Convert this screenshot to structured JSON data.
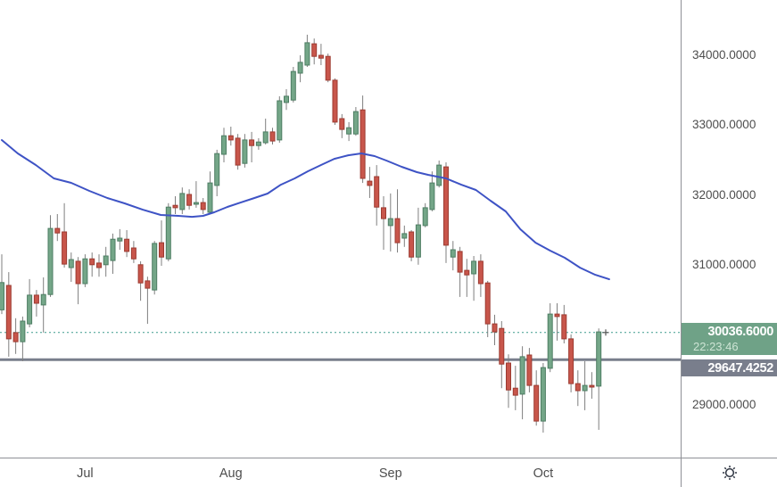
{
  "chart_data": {
    "type": "candlestick",
    "title": "",
    "grid": "off",
    "legend": "none",
    "ylim": [
      28248,
      34791
    ],
    "xlim_index": [
      -0.26,
      97.8
    ],
    "y_axis": {
      "tick_values": [
        34000,
        33000,
        32000,
        31000,
        29000
      ],
      "tick_labels": [
        "34000.0000",
        "33000.0000",
        "32000.0000",
        "31000.0000",
        "29000.0000"
      ]
    },
    "x_axis": {
      "months": [
        {
          "label": "Jul",
          "index": 12
        },
        {
          "label": "Aug",
          "index": 33
        },
        {
          "label": "Sep",
          "index": 56
        },
        {
          "label": "Oct",
          "index": 78
        }
      ]
    },
    "candles_format": "[open, high, low, close]",
    "candles": [
      [
        30360,
        31155,
        30300,
        30750
      ],
      [
        30710,
        30900,
        29690,
        29945
      ],
      [
        30035,
        30240,
        29730,
        29905
      ],
      [
        29905,
        30265,
        29625,
        30200
      ],
      [
        30160,
        30800,
        30110,
        30570
      ],
      [
        30570,
        30645,
        30265,
        30455
      ],
      [
        30430,
        30825,
        30035,
        30580
      ],
      [
        30580,
        31715,
        30545,
        31525
      ],
      [
        31525,
        31730,
        31345,
        31460
      ],
      [
        31475,
        31885,
        30965,
        31015
      ],
      [
        30965,
        31180,
        30760,
        31080
      ],
      [
        31055,
        31115,
        30440,
        30735
      ],
      [
        30735,
        31155,
        30685,
        31090
      ],
      [
        31090,
        31180,
        30835,
        31005
      ],
      [
        31030,
        31155,
        30835,
        30965
      ],
      [
        31005,
        31260,
        30835,
        31130
      ],
      [
        31065,
        31450,
        30875,
        31370
      ],
      [
        31345,
        31515,
        31220,
        31385
      ],
      [
        31370,
        31500,
        31115,
        31195
      ],
      [
        31245,
        31345,
        31030,
        31090
      ],
      [
        31005,
        31055,
        30490,
        30745
      ],
      [
        30775,
        30835,
        30160,
        30670
      ],
      [
        30645,
        31345,
        30580,
        31310
      ],
      [
        31320,
        31640,
        30990,
        31115
      ],
      [
        31090,
        31885,
        31055,
        31830
      ],
      [
        31855,
        31985,
        31730,
        31820
      ],
      [
        31795,
        32110,
        31730,
        32025
      ],
      [
        32010,
        32085,
        31795,
        31855
      ],
      [
        31870,
        32200,
        31820,
        31895
      ],
      [
        31895,
        31960,
        31730,
        31795
      ],
      [
        31755,
        32340,
        31730,
        32175
      ],
      [
        32140,
        32650,
        31985,
        32595
      ],
      [
        32585,
        32965,
        32470,
        32850
      ],
      [
        32850,
        32980,
        32710,
        32790
      ],
      [
        32815,
        32875,
        32365,
        32430
      ],
      [
        32455,
        32875,
        32395,
        32790
      ],
      [
        32790,
        32905,
        32470,
        32710
      ],
      [
        32710,
        32815,
        32650,
        32760
      ],
      [
        32750,
        33095,
        32725,
        32905
      ],
      [
        32905,
        32965,
        32725,
        32775
      ],
      [
        32790,
        33415,
        32750,
        33350
      ],
      [
        33325,
        33515,
        33220,
        33415
      ],
      [
        33360,
        33835,
        33325,
        33770
      ],
      [
        33745,
        34000,
        33615,
        33900
      ],
      [
        33860,
        34295,
        33835,
        34180
      ],
      [
        34165,
        34240,
        33870,
        33985
      ],
      [
        34000,
        34165,
        33860,
        33960
      ],
      [
        33985,
        34025,
        33615,
        33645
      ],
      [
        33645,
        33670,
        33005,
        33045
      ],
      [
        33095,
        33160,
        32815,
        32940
      ],
      [
        32875,
        33045,
        32775,
        32965
      ],
      [
        32875,
        33260,
        32850,
        33195
      ],
      [
        33220,
        33425,
        32175,
        32240
      ],
      [
        32200,
        32405,
        31960,
        32140
      ],
      [
        32265,
        32430,
        31565,
        31830
      ],
      [
        31820,
        31985,
        31220,
        31665
      ],
      [
        31565,
        32025,
        31195,
        31665
      ],
      [
        31665,
        32085,
        31180,
        31320
      ],
      [
        31385,
        31565,
        31260,
        31450
      ],
      [
        31475,
        31500,
        31055,
        31115
      ],
      [
        31115,
        31820,
        31005,
        31575
      ],
      [
        31565,
        31885,
        31540,
        31820
      ],
      [
        31795,
        32340,
        31770,
        32175
      ],
      [
        32140,
        32495,
        32110,
        32430
      ],
      [
        32405,
        32470,
        31030,
        31285
      ],
      [
        31115,
        31345,
        30925,
        31220
      ],
      [
        31195,
        31260,
        30545,
        30900
      ],
      [
        30925,
        31090,
        30545,
        30860
      ],
      [
        30875,
        31130,
        30490,
        31055
      ],
      [
        31055,
        31155,
        30545,
        30735
      ],
      [
        30745,
        30775,
        29970,
        30160
      ],
      [
        30160,
        30290,
        29855,
        30045
      ],
      [
        30095,
        30200,
        29240,
        29585
      ],
      [
        29600,
        29725,
        28960,
        29215
      ],
      [
        29240,
        29560,
        28925,
        29140
      ],
      [
        29155,
        29840,
        28795,
        29690
      ],
      [
        29715,
        29815,
        29180,
        29280
      ],
      [
        29280,
        29495,
        28705,
        28770
      ],
      [
        28770,
        29600,
        28605,
        29535
      ],
      [
        29525,
        30455,
        29470,
        30300
      ],
      [
        30300,
        30455,
        29920,
        30265
      ],
      [
        30290,
        30430,
        29880,
        29945
      ],
      [
        29945,
        30010,
        29180,
        29305
      ],
      [
        29305,
        29495,
        28985,
        29205
      ],
      [
        29205,
        29625,
        28925,
        29280
      ],
      [
        29280,
        29470,
        29090,
        29255
      ],
      [
        29270,
        30095,
        28645,
        30045
      ]
    ],
    "ma_line": {
      "name": "moving-average",
      "color": "#3E53C5",
      "points": [
        [
          0,
          32788
        ],
        [
          2.3,
          32597
        ],
        [
          4.9,
          32431
        ],
        [
          7.5,
          32240
        ],
        [
          10,
          32176
        ],
        [
          12.6,
          32061
        ],
        [
          15.2,
          31959
        ],
        [
          17.7,
          31883
        ],
        [
          20.3,
          31793
        ],
        [
          22.9,
          31717
        ],
        [
          25.4,
          31704
        ],
        [
          27.4,
          31691
        ],
        [
          29,
          31704
        ],
        [
          30.6,
          31755
        ],
        [
          32.5,
          31832
        ],
        [
          34.4,
          31895
        ],
        [
          36.4,
          31959
        ],
        [
          38.3,
          32023
        ],
        [
          40.2,
          32150
        ],
        [
          42.2,
          32240
        ],
        [
          44.1,
          32342
        ],
        [
          46,
          32431
        ],
        [
          47.9,
          32520
        ],
        [
          49.9,
          32571
        ],
        [
          51.8,
          32597
        ],
        [
          53.7,
          32559
        ],
        [
          55.4,
          32495
        ],
        [
          57.6,
          32406
        ],
        [
          59.8,
          32329
        ],
        [
          61.4,
          32291
        ],
        [
          64,
          32240
        ],
        [
          66.2,
          32150
        ],
        [
          68.3,
          32074
        ],
        [
          70.4,
          31921
        ],
        [
          72.6,
          31768
        ],
        [
          74.7,
          31513
        ],
        [
          76.9,
          31321
        ],
        [
          79,
          31207
        ],
        [
          81.1,
          31105
        ],
        [
          83.3,
          30964
        ],
        [
          85.5,
          30862
        ],
        [
          87.5,
          30798
        ]
      ]
    },
    "current_price": {
      "value": 30036.6,
      "display": "30036.6000",
      "time": "22:23:46",
      "line_color": "#3F9C8E",
      "badge_color": "#6FA287",
      "time_text_color": "#CDE4D4",
      "marker_index": 87
    },
    "level_line": {
      "value": 29647.4252,
      "display": "29647.4252",
      "color": "#797E8C"
    },
    "colors": {
      "bull_fill": "#74A688",
      "bull_border": "#4E7D63",
      "bear_fill": "#C8564B",
      "bear_border": "#9C3B31",
      "wick": "#7F7F7F",
      "axis_text": "#4D4D4D",
      "axis_line": "#8E9096",
      "marker": "#555555"
    }
  },
  "icons": {
    "settings": "gear"
  }
}
